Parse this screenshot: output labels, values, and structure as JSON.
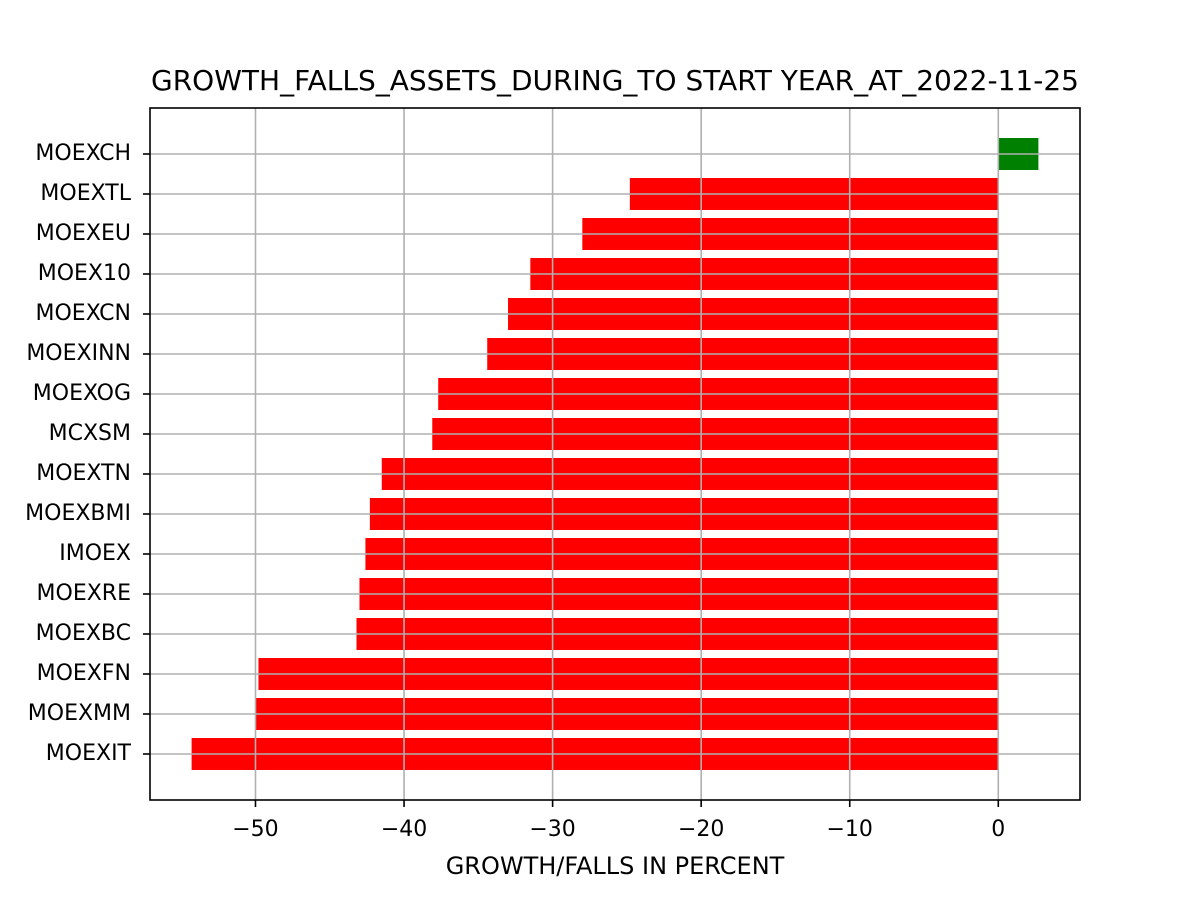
{
  "chart_data": {
    "type": "barh",
    "title": "GROWTH_FALLS_ASSETS_DURING_TO START YEAR_AT_2022-11-25",
    "xlabel": "GROWTH/FALLS IN PERCENT",
    "categories": [
      "MOEXCH",
      "MOEXTL",
      "MOEXEU",
      "MOEX10",
      "MOEXCN",
      "MOEXINN",
      "MOEXOG",
      "MCXSM",
      "MOEXTN",
      "MOEXBMI",
      "IMOEX",
      "MOEXRE",
      "MOEXBC",
      "MOEXFN",
      "MOEXMM",
      "MOEXIT"
    ],
    "values": [
      2.7,
      -24.8,
      -28.0,
      -31.5,
      -33.0,
      -34.4,
      -37.7,
      -38.1,
      -41.5,
      -42.3,
      -42.6,
      -43.0,
      -43.2,
      -49.8,
      -50.0,
      -54.3
    ],
    "colors": [
      "#008000",
      "#ff0000",
      "#ff0000",
      "#ff0000",
      "#ff0000",
      "#ff0000",
      "#ff0000",
      "#ff0000",
      "#ff0000",
      "#ff0000",
      "#ff0000",
      "#ff0000",
      "#ff0000",
      "#ff0000",
      "#ff0000",
      "#ff0000"
    ],
    "xlim": [
      -57.1,
      5.5
    ],
    "xticks": [
      {
        "value": -50,
        "label": "−50"
      },
      {
        "value": -40,
        "label": "−40"
      },
      {
        "value": -30,
        "label": "−30"
      },
      {
        "value": -20,
        "label": "−20"
      },
      {
        "value": -10,
        "label": "−10"
      },
      0
    ],
    "grid": true
  }
}
